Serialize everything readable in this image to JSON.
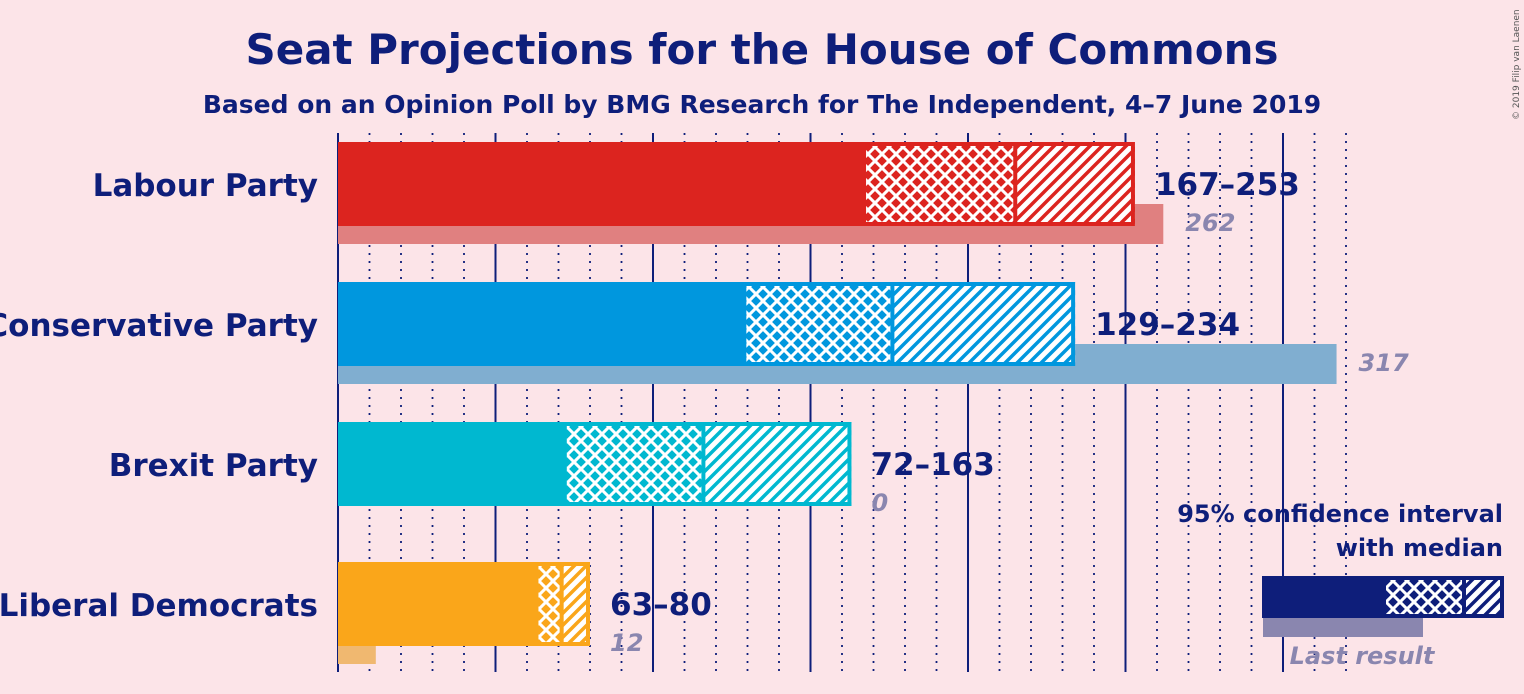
{
  "chart_data": {
    "type": "bar",
    "title": "Seat Projections for the House of Commons",
    "subtitle": "Based on an Opinion Poll by BMG Research for The Independent, 4–7 June 2019",
    "copyright": "© 2019 Filip van Laenen",
    "xlim": [
      0,
      320
    ],
    "major_tick_interval": 50,
    "minor_tick_interval": 10,
    "categories": [
      "Labour Party",
      "Conservative Party",
      "Brexit Party",
      "Liberal Democrats"
    ],
    "series": [
      {
        "party": "Labour Party",
        "color": "#DC241F",
        "last_color": "#E08080",
        "ci_low": 167,
        "median": 215,
        "ci_high": 253,
        "range_label": "167–253",
        "last_result": 262,
        "last_label": "262"
      },
      {
        "party": "Conservative Party",
        "color": "#0097DE",
        "last_color": "#80AED0",
        "ci_low": 129,
        "median": 176,
        "ci_high": 234,
        "range_label": "129–234",
        "last_result": 317,
        "last_label": "317"
      },
      {
        "party": "Brexit Party",
        "color": "#00B8D0",
        "last_color": "#80C8D8",
        "ci_low": 72,
        "median": 116,
        "ci_high": 163,
        "range_label": "72–163",
        "last_result": 0,
        "last_label": "0"
      },
      {
        "party": "Liberal Democrats",
        "color": "#FAA61A",
        "last_color": "#F0B870",
        "ci_low": 63,
        "median": 71,
        "ci_high": 80,
        "range_label": "63–80",
        "last_result": 12,
        "last_label": "12"
      }
    ],
    "legend": {
      "line1": "95% confidence interval",
      "line2": "with median",
      "last_result": "Last result",
      "color": "#0E1E7A",
      "last_color": "#8A86AF"
    }
  }
}
